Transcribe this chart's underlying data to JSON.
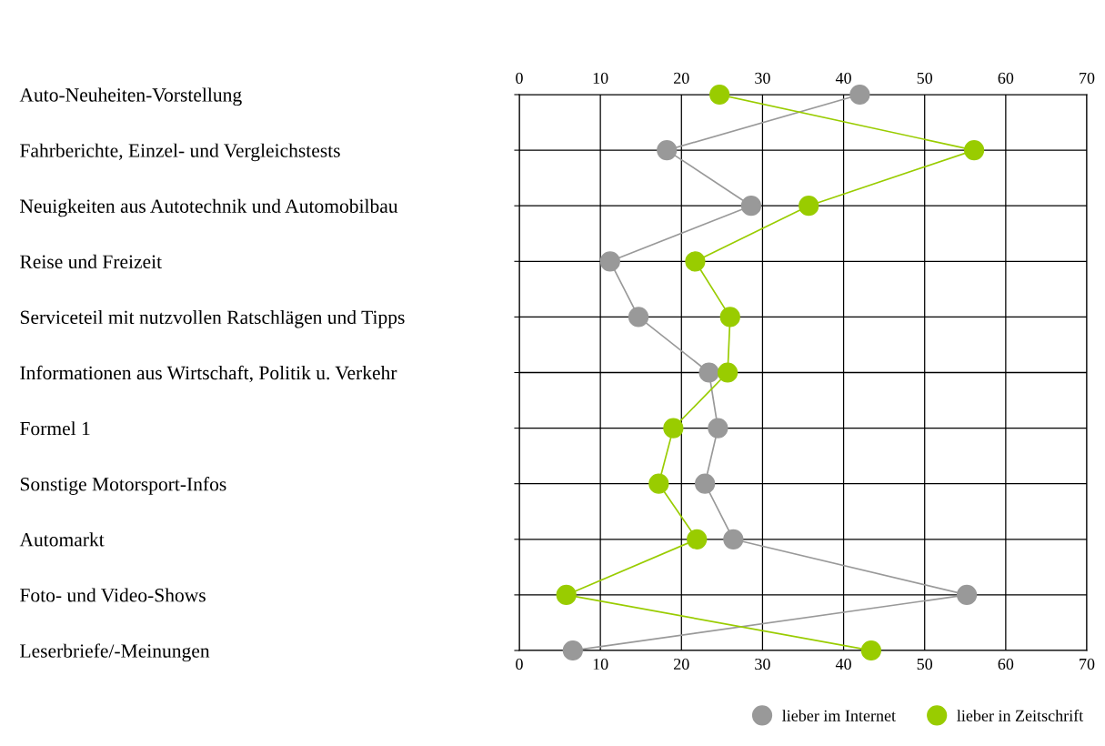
{
  "chart_data": {
    "type": "line",
    "orientation": "horizontal",
    "categories": [
      "Auto-Neuheiten-Vorstellung",
      "Fahrberichte, Einzel- und Vergleichstests",
      "Neuigkeiten aus Autotechnik und Automobilbau",
      "Reise und Freizeit",
      "Serviceteil mit nutzvollen Ratschlägen und Tipps",
      "Informationen aus Wirtschaft, Politik u. Verkehr",
      "Formel 1",
      "Sonstige Motorsport-Infos",
      "Automarkt",
      "Foto- und Video-Shows",
      "Leserbriefe/-Meinungen"
    ],
    "series": [
      {
        "name": "lieber im Internet",
        "color": "#999999",
        "values": [
          42,
          18.2,
          28.6,
          11.2,
          14.7,
          23.4,
          24.5,
          22.9,
          26.4,
          55.2,
          6.6
        ]
      },
      {
        "name": "lieber in Zeitschrift",
        "color": "#99cc00",
        "values": [
          24.7,
          56.1,
          35.7,
          21.7,
          26.0,
          25.7,
          19.0,
          17.2,
          21.9,
          5.8,
          43.4
        ]
      }
    ],
    "xlim": [
      0,
      70
    ],
    "xticks": [
      0,
      10,
      20,
      30,
      40,
      50,
      60,
      70
    ],
    "x2lim": [
      0,
      70
    ],
    "x2ticks": [
      0,
      10,
      20,
      30,
      40,
      50,
      60,
      70
    ],
    "grid": true,
    "legend": "bottom right",
    "marker": "circle",
    "line_style": "solid"
  }
}
